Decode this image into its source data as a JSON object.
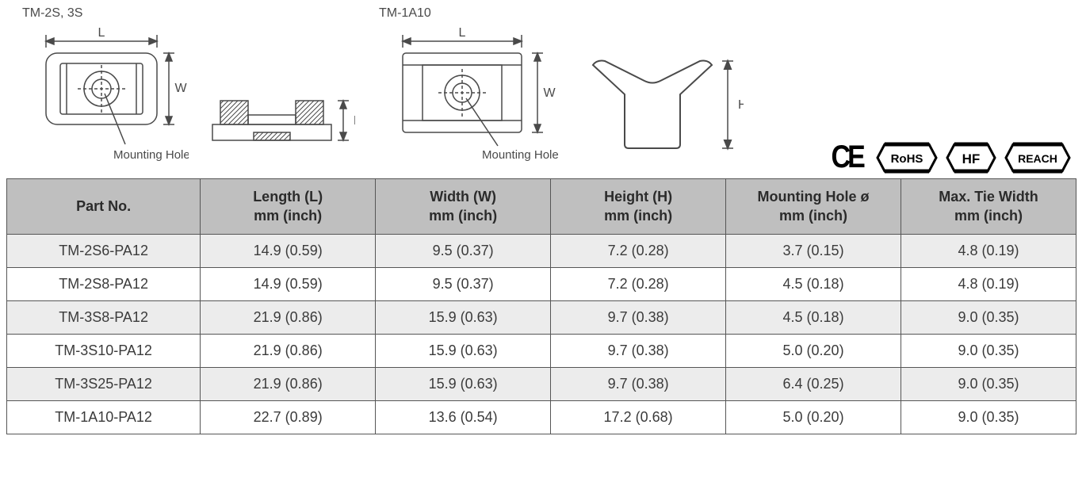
{
  "diagrams": {
    "left_label": "TM-2S, 3S",
    "right_label": "TM-1A10",
    "dim_L": "L",
    "dim_W": "W",
    "dim_H": "H",
    "hole_label": "Mounting Hole Ø"
  },
  "badges": {
    "ce": "CE",
    "rohs": "RoHS",
    "hf": "HF",
    "reach": "REACH"
  },
  "table": {
    "columns": [
      "Part No.",
      "Length (L)\nmm (inch)",
      "Width (W)\nmm (inch)",
      "Height (H)\nmm (inch)",
      "Mounting Hole ø\nmm (inch)",
      "Max. Tie Width\nmm (inch)"
    ],
    "rows": [
      [
        "TM-2S6-PA12",
        "14.9 (0.59)",
        "9.5 (0.37)",
        "7.2 (0.28)",
        "3.7 (0.15)",
        "4.8 (0.19)"
      ],
      [
        "TM-2S8-PA12",
        "14.9 (0.59)",
        "9.5 (0.37)",
        "7.2 (0.28)",
        "4.5 (0.18)",
        "4.8 (0.19)"
      ],
      [
        "TM-3S8-PA12",
        "21.9 (0.86)",
        "15.9 (0.63)",
        "9.7 (0.38)",
        "4.5 (0.18)",
        "9.0 (0.35)"
      ],
      [
        "TM-3S10-PA12",
        "21.9 (0.86)",
        "15.9 (0.63)",
        "9.7 (0.38)",
        "5.0 (0.20)",
        "9.0 (0.35)"
      ],
      [
        "TM-3S25-PA12",
        "21.9 (0.86)",
        "15.9 (0.63)",
        "9.7 (0.38)",
        "6.4 (0.25)",
        "9.0 (0.35)"
      ],
      [
        "TM-1A10-PA12",
        "22.7 (0.89)",
        "13.6 (0.54)",
        "17.2 (0.68)",
        "5.0 (0.20)",
        "9.0 (0.35)"
      ]
    ],
    "header_bg": "#bfbfbf",
    "row_odd_bg": "#ececec",
    "row_even_bg": "#ffffff",
    "border_color": "#565656",
    "text_color": "#3b3b3b",
    "font_size_pt": 14
  }
}
